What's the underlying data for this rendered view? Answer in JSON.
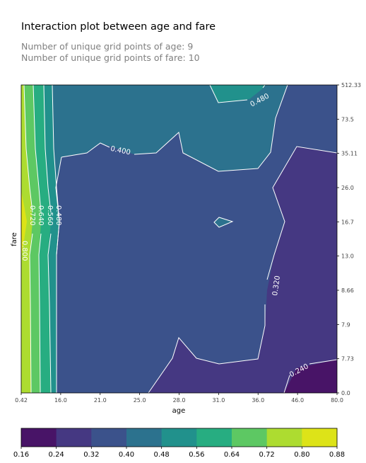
{
  "chart": {
    "title": "Interaction plot between age and fare",
    "subtitle_1": "Number of unique grid points of age: 9",
    "subtitle_2": "Number of unique grid points of fare: 10"
  },
  "chart_data": {
    "type": "heatmap",
    "subtype": "filled-contour",
    "title": "Interaction plot between age and fare",
    "xlabel": "age",
    "ylabel": "fare",
    "x_ticks": [
      "0.42",
      "16.0",
      "21.0",
      "25.0",
      "28.0",
      "31.0",
      "36.0",
      "46.0",
      "80.0"
    ],
    "y_ticks": [
      "0.0",
      "7.73",
      "7.9",
      "8.66",
      "13.0",
      "16.7",
      "26.0",
      "35.11",
      "73.5",
      "512.33"
    ],
    "y_axis_side": "right",
    "colorbar": {
      "ticks": [
        "0.16",
        "0.24",
        "0.32",
        "0.40",
        "0.48",
        "0.56",
        "0.64",
        "0.72",
        "0.80",
        "0.88"
      ],
      "colors": [
        "#481467",
        "#453882",
        "#3b528b",
        "#2c728e",
        "#21918c",
        "#27ad81",
        "#5dc863",
        "#addc30",
        "#dde318"
      ],
      "placement": "bottom"
    },
    "contour_labels": [
      "0.400",
      "0.480",
      "0.320",
      "0.240",
      "0.480",
      "0.560",
      "0.640",
      "0.720",
      "0.800"
    ]
  }
}
